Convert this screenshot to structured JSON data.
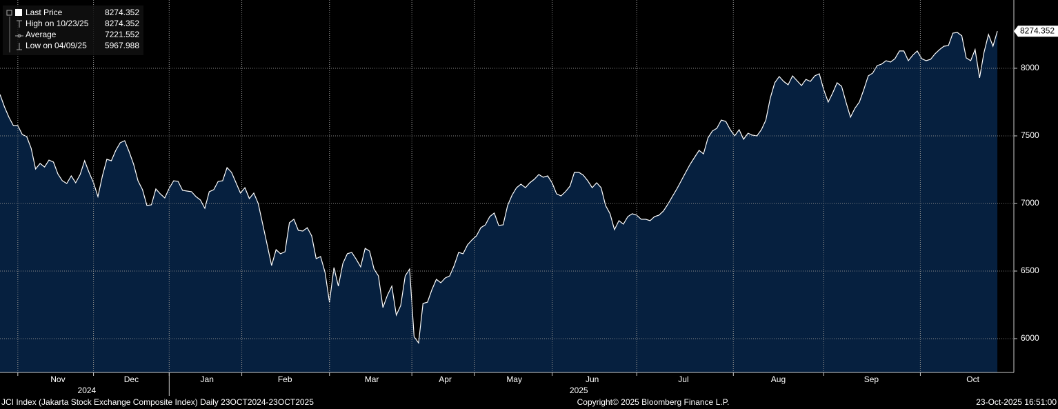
{
  "chart_data": {
    "type": "area",
    "series": [
      {
        "name": "Last Price",
        "color": "#ffffff",
        "fill": "#06203f",
        "values": [
          7806,
          7714,
          7638,
          7576,
          7576,
          7510,
          7495,
          7408,
          7255,
          7296,
          7270,
          7321,
          7306,
          7219,
          7168,
          7148,
          7204,
          7153,
          7214,
          7316,
          7230,
          7153,
          7051,
          7204,
          7327,
          7316,
          7393,
          7449,
          7464,
          7383,
          7291,
          7168,
          7102,
          6985,
          6990,
          7107,
          7071,
          7041,
          7112,
          7168,
          7163,
          7097,
          7092,
          7087,
          7051,
          7026,
          6964,
          7087,
          7102,
          7163,
          7168,
          7265,
          7230,
          7153,
          7077,
          7117,
          7036,
          7077,
          7000,
          6847,
          6694,
          6541,
          6658,
          6628,
          6643,
          6857,
          6883,
          6801,
          6796,
          6821,
          6760,
          6592,
          6607,
          6490,
          6270,
          6526,
          6388,
          6556,
          6628,
          6638,
          6587,
          6531,
          6668,
          6648,
          6515,
          6464,
          6230,
          6321,
          6388,
          6174,
          6245,
          6464,
          6515,
          6015,
          5967.988,
          6260,
          6270,
          6362,
          6439,
          6413,
          6449,
          6464,
          6541,
          6638,
          6628,
          6694,
          6730,
          6760,
          6821,
          6842,
          6903,
          6929,
          6837,
          6842,
          6985,
          7061,
          7117,
          7143,
          7117,
          7153,
          7179,
          7214,
          7194,
          7204,
          7153,
          7071,
          7056,
          7087,
          7128,
          7230,
          7230,
          7209,
          7168,
          7117,
          7153,
          7117,
          6985,
          6924,
          6806,
          6873,
          6847,
          6903,
          6924,
          6913,
          6883,
          6883,
          6873,
          6903,
          6913,
          6944,
          6995,
          7051,
          7107,
          7168,
          7230,
          7291,
          7342,
          7393,
          7367,
          7485,
          7536,
          7556,
          7617,
          7607,
          7546,
          7500,
          7546,
          7475,
          7520,
          7505,
          7500,
          7546,
          7617,
          7781,
          7893,
          7939,
          7903,
          7878,
          7944,
          7908,
          7872,
          7918,
          7903,
          7944,
          7959,
          7842,
          7750,
          7816,
          7893,
          7867,
          7750,
          7638,
          7704,
          7750,
          7842,
          7944,
          7964,
          8020,
          8031,
          8056,
          8046,
          8071,
          8128,
          8128,
          8056,
          8097,
          8128,
          8071,
          8056,
          8066,
          8107,
          8138,
          8163,
          8168,
          8260,
          8265,
          8240,
          8077,
          8056,
          8138,
          7929,
          8117,
          8250,
          8163,
          8274.352
        ]
      }
    ],
    "stats": [
      {
        "label": "High on 10/23/25",
        "value": 8274.352
      },
      {
        "label": "Average",
        "value": 7221.552
      },
      {
        "label": "Low on 04/09/25",
        "value": 5967.988
      }
    ],
    "xlim": [
      0,
      227.7
    ],
    "xticks": [
      {
        "value": 13,
        "label": "Nov"
      },
      {
        "value": 29.5,
        "label": "Dec"
      },
      {
        "value": 46.5,
        "label": "Jan"
      },
      {
        "value": 64,
        "label": "Feb"
      },
      {
        "value": 83.5,
        "label": "Mar"
      },
      {
        "value": 100,
        "label": "Apr"
      },
      {
        "value": 115.5,
        "label": "May"
      },
      {
        "value": 133,
        "label": "Jun"
      },
      {
        "value": 153.5,
        "label": "Jul"
      },
      {
        "value": 174.8,
        "label": "Aug"
      },
      {
        "value": 195.7,
        "label": "Sep"
      },
      {
        "value": 218.5,
        "label": "Oct"
      }
    ],
    "xminorticks": [
      4,
      21,
      38,
      54.3,
      74,
      92.5,
      106.5,
      124,
      143,
      164.7,
      185,
      206.7
    ],
    "year_ticks": [
      {
        "value": 19.5,
        "label": "2024"
      },
      {
        "value": 130,
        "label": "2025"
      }
    ],
    "year_boundary": 38,
    "ylim": [
      5750,
      8505
    ],
    "yticks": [
      6000,
      6500,
      7000,
      7500,
      8000
    ],
    "grid": true,
    "footer_left": "JCI Index (Jakarta Stock Exchange Composite Index) Daily 23OCT2024-23OCT2025",
    "footer_center": "Copyright© 2025 Bloomberg Finance L.P.",
    "footer_right": "23-Oct-2025 16:51:00"
  }
}
